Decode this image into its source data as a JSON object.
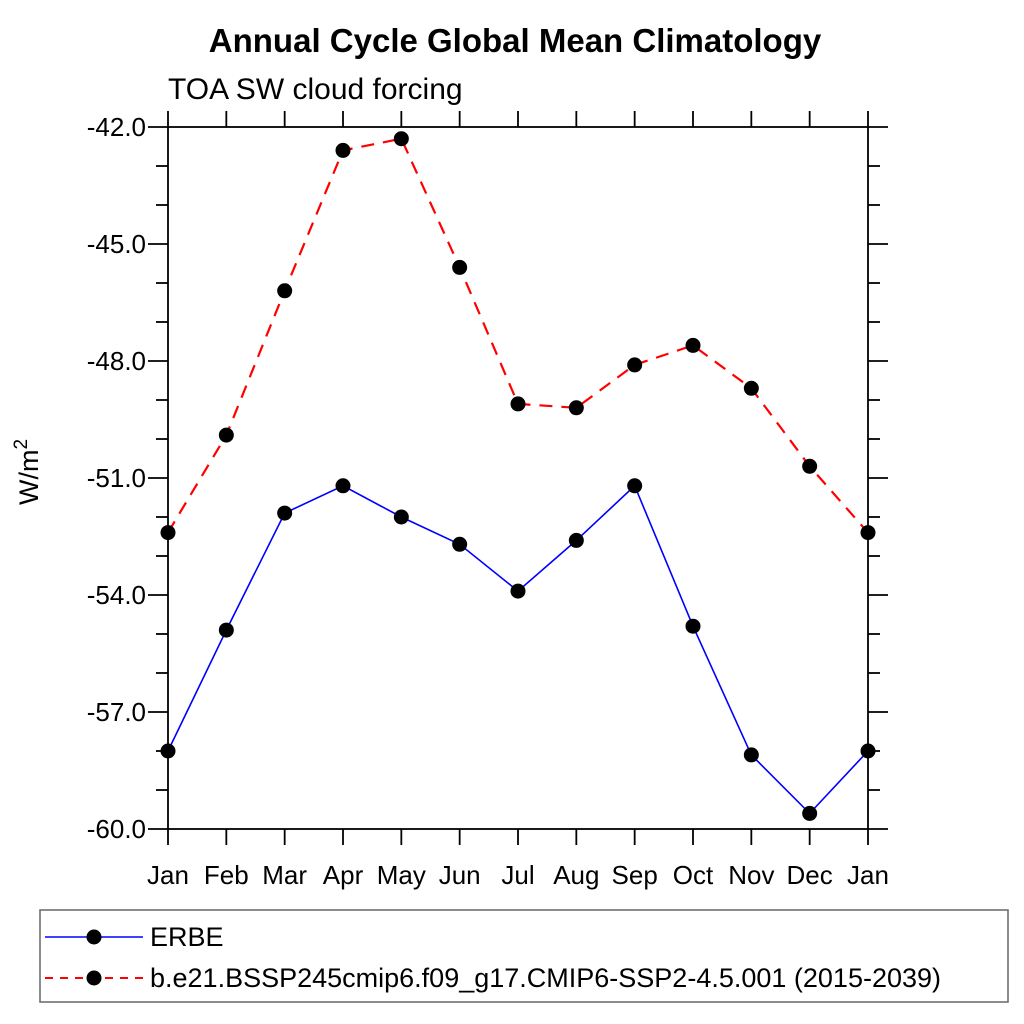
{
  "title": "Annual Cycle Global Mean Climatology",
  "subtitle": "TOA SW cloud forcing",
  "chart_data": {
    "type": "line",
    "title": "Annual Cycle Global Mean Climatology",
    "subtitle": "TOA SW cloud forcing",
    "categories": [
      "Jan",
      "Feb",
      "Mar",
      "Apr",
      "May",
      "Jun",
      "Jul",
      "Aug",
      "Sep",
      "Oct",
      "Nov",
      "Dec",
      "Jan"
    ],
    "series": [
      {
        "name": "ERBE",
        "color": "#0000ff",
        "line_style": "solid",
        "line_width": 1.6,
        "marker": "filled-circle",
        "marker_color": "#000000",
        "values": [
          -58.0,
          -54.9,
          -51.9,
          -51.2,
          -52.0,
          -52.7,
          -53.9,
          -52.6,
          -51.2,
          -54.8,
          -58.1,
          -59.6,
          -58.0
        ]
      },
      {
        "name": "b.e21.BSSP245cmip6.f09_g17.CMIP6-SSP2-4.5.001 (2015-2039)",
        "color": "#ff0000",
        "line_style": "dashed",
        "line_width": 2.2,
        "marker": "filled-circle",
        "marker_color": "#000000",
        "values": [
          -52.4,
          -49.9,
          -46.2,
          -42.6,
          -42.3,
          -45.6,
          -49.1,
          -49.2,
          -48.1,
          -47.6,
          -48.7,
          -50.7,
          -52.4
        ]
      }
    ],
    "xlabel": "",
    "ylabel": "W/m",
    "ylabel_sup": "2",
    "ylim": [
      -60.0,
      -42.0
    ],
    "ytick_major_interval": 3.0,
    "ytick_minor_interval": 1.0,
    "ytick_labels": [
      "-42.0",
      "-45.0",
      "-48.0",
      "-51.0",
      "-54.0",
      "-57.0",
      "-60.0"
    ],
    "grid": false,
    "legend_position": "bottom",
    "axis_color": "#000000",
    "legend_border_color": "#666666"
  }
}
